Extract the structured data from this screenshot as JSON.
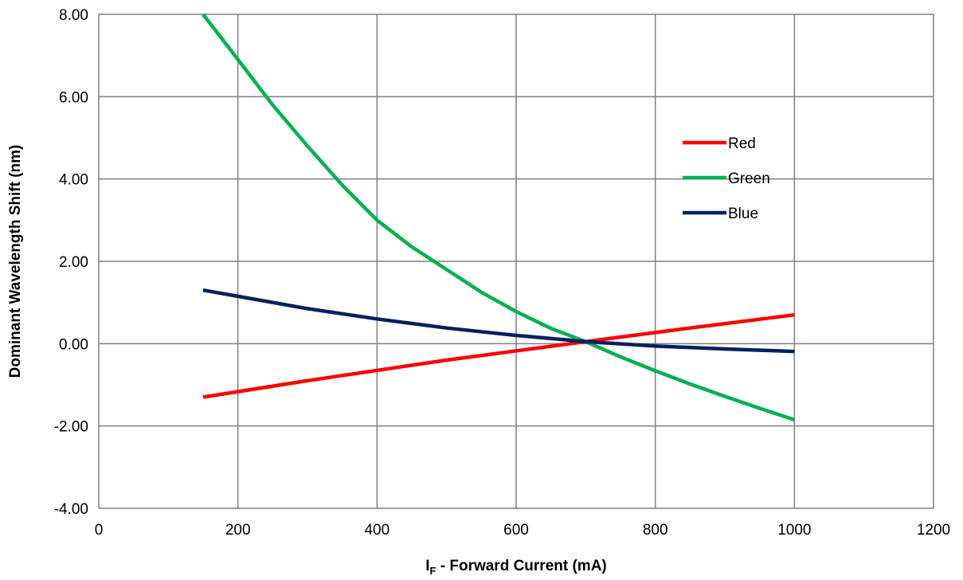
{
  "chart_data": {
    "type": "line",
    "title": "",
    "xlabel_main": "I",
    "xlabel_sub": "F",
    "xlabel_rest": " - Forward Current (mA)",
    "ylabel": "Dominant Wavelength Shift (nm)",
    "xlim": [
      0,
      1200
    ],
    "ylim": [
      -4,
      8
    ],
    "x_ticks": [
      0,
      200,
      400,
      600,
      800,
      1000,
      1200
    ],
    "x_tick_labels": [
      "0",
      "200",
      "400",
      "600",
      "800",
      "1000",
      "1200"
    ],
    "y_ticks": [
      -4,
      -2,
      0,
      2,
      4,
      6,
      8
    ],
    "y_tick_labels": [
      "-4.00",
      "-2.00",
      "0.00",
      "2.00",
      "4.00",
      "6.00",
      "8.00"
    ],
    "grid": true,
    "legend_position": "right",
    "series": [
      {
        "name": "Red",
        "color": "#ff0000",
        "x": [
          150,
          300,
          500,
          700,
          850,
          1000
        ],
        "y": [
          -1.3,
          -0.9,
          -0.4,
          0.05,
          0.38,
          0.7
        ]
      },
      {
        "name": "Green",
        "color": "#00b050",
        "x": [
          150,
          200,
          250,
          300,
          350,
          400,
          450,
          500,
          550,
          600,
          650,
          700,
          750,
          800,
          850,
          900,
          950,
          1000
        ],
        "y": [
          8.0,
          6.9,
          5.8,
          4.8,
          3.85,
          3.0,
          2.35,
          1.8,
          1.25,
          0.78,
          0.37,
          0.05,
          -0.32,
          -0.66,
          -0.98,
          -1.28,
          -1.57,
          -1.85
        ]
      },
      {
        "name": "Blue",
        "color": "#002060",
        "x": [
          150,
          200,
          300,
          400,
          500,
          600,
          700,
          800,
          900,
          1000
        ],
        "y": [
          1.3,
          1.15,
          0.85,
          0.6,
          0.38,
          0.2,
          0.05,
          -0.06,
          -0.13,
          -0.19
        ]
      }
    ]
  }
}
